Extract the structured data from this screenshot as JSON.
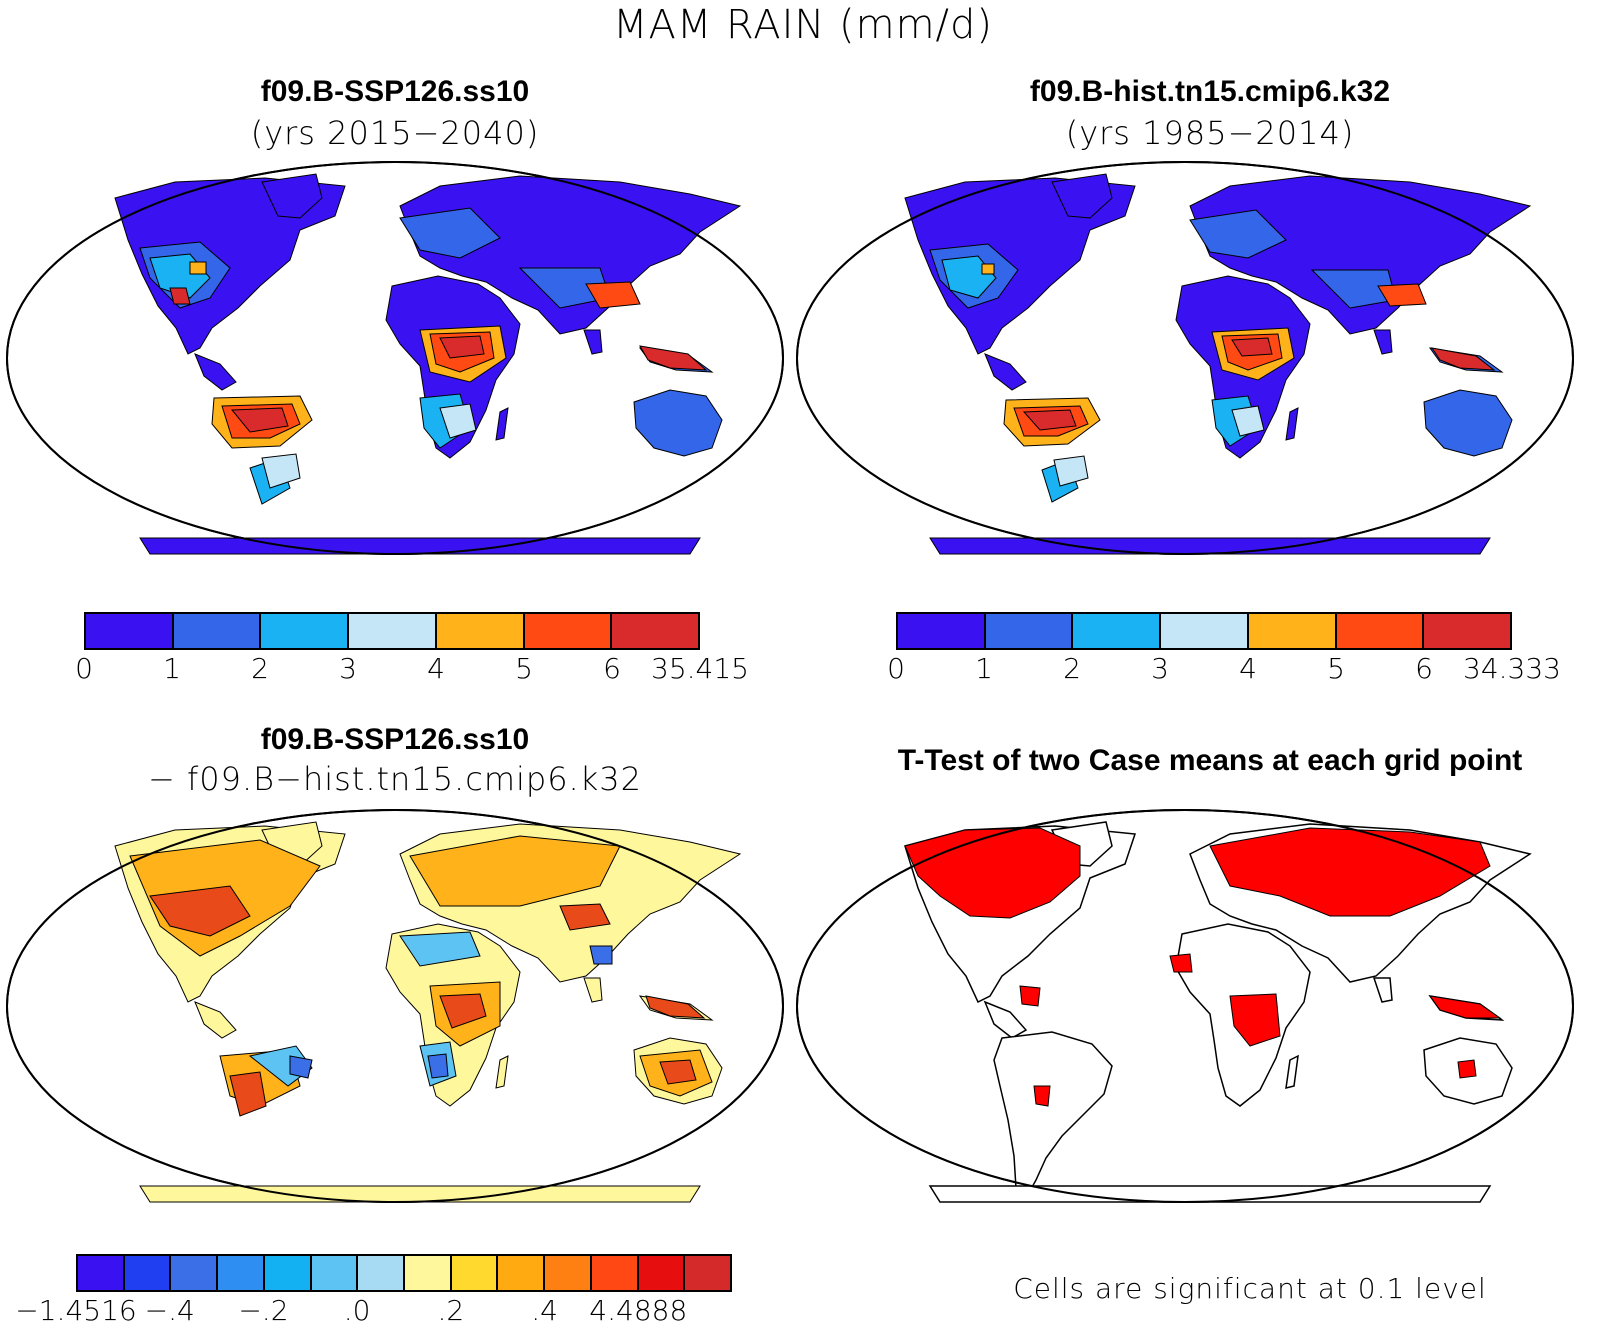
{
  "title": "MAM RAIN (mm/d)",
  "panels": {
    "top_left": {
      "title": "f09.B-SSP126.ss10",
      "subtitle": "(yrs 2015−2040)"
    },
    "top_right": {
      "title": "f09.B-hist.tn15.cmip6.k32",
      "subtitle": "(yrs 1985−2014)"
    },
    "bottom_left": {
      "title": "f09.B-SSP126.ss10",
      "subtitle": "− f09.B−hist.tn15.cmip6.k32"
    },
    "bottom_right": {
      "title": "T-Test of two Case means at each grid point",
      "note": "Cells are significant at 0.1 level"
    }
  },
  "colorbars": {
    "rain_left": {
      "colors": [
        "#3a12f2",
        "#3366e8",
        "#1ab2f2",
        "#c4e6f6",
        "#ffb21a",
        "#ff4a14",
        "#d92b2b"
      ],
      "labels": [
        "0",
        "1",
        "2",
        "3",
        "4",
        "5",
        "6",
        "35.415"
      ]
    },
    "rain_right": {
      "colors": [
        "#3a12f2",
        "#3366e8",
        "#1ab2f2",
        "#c4e6f6",
        "#ffb21a",
        "#ff4a14",
        "#d92b2b"
      ],
      "labels": [
        "0",
        "1",
        "2",
        "3",
        "4",
        "5",
        "6",
        "34.333"
      ]
    },
    "diff": {
      "colors": [
        "#3a12f2",
        "#1f3ff0",
        "#3a6fe8",
        "#2e8ef2",
        "#13b0f2",
        "#5cc3f2",
        "#a7dbf4",
        "#fff79c",
        "#ffd92e",
        "#ffaa10",
        "#ff8012",
        "#ff4814",
        "#e60e0e",
        "#d42a2a"
      ],
      "labels": [
        "−1.4516",
        "−.4",
        "−.2",
        ".0",
        ".2",
        ".4",
        "4.4888"
      ]
    }
  },
  "map_colors": {
    "dry": "#3a12f2",
    "low": "#3366e8",
    "mid": "#1ab2f2",
    "pale": "#c4e6f6",
    "moist": "#ffb21a",
    "wet": "#ff4a14",
    "verywet": "#d92b2b",
    "diff_neutral": "#fff79c",
    "diff_pos": "#ffb21a",
    "diff_strong": "#e84a1a",
    "diff_neg": "#5cc3f2",
    "diff_strongneg": "#3a6fe8",
    "signif": "#ff0000"
  }
}
